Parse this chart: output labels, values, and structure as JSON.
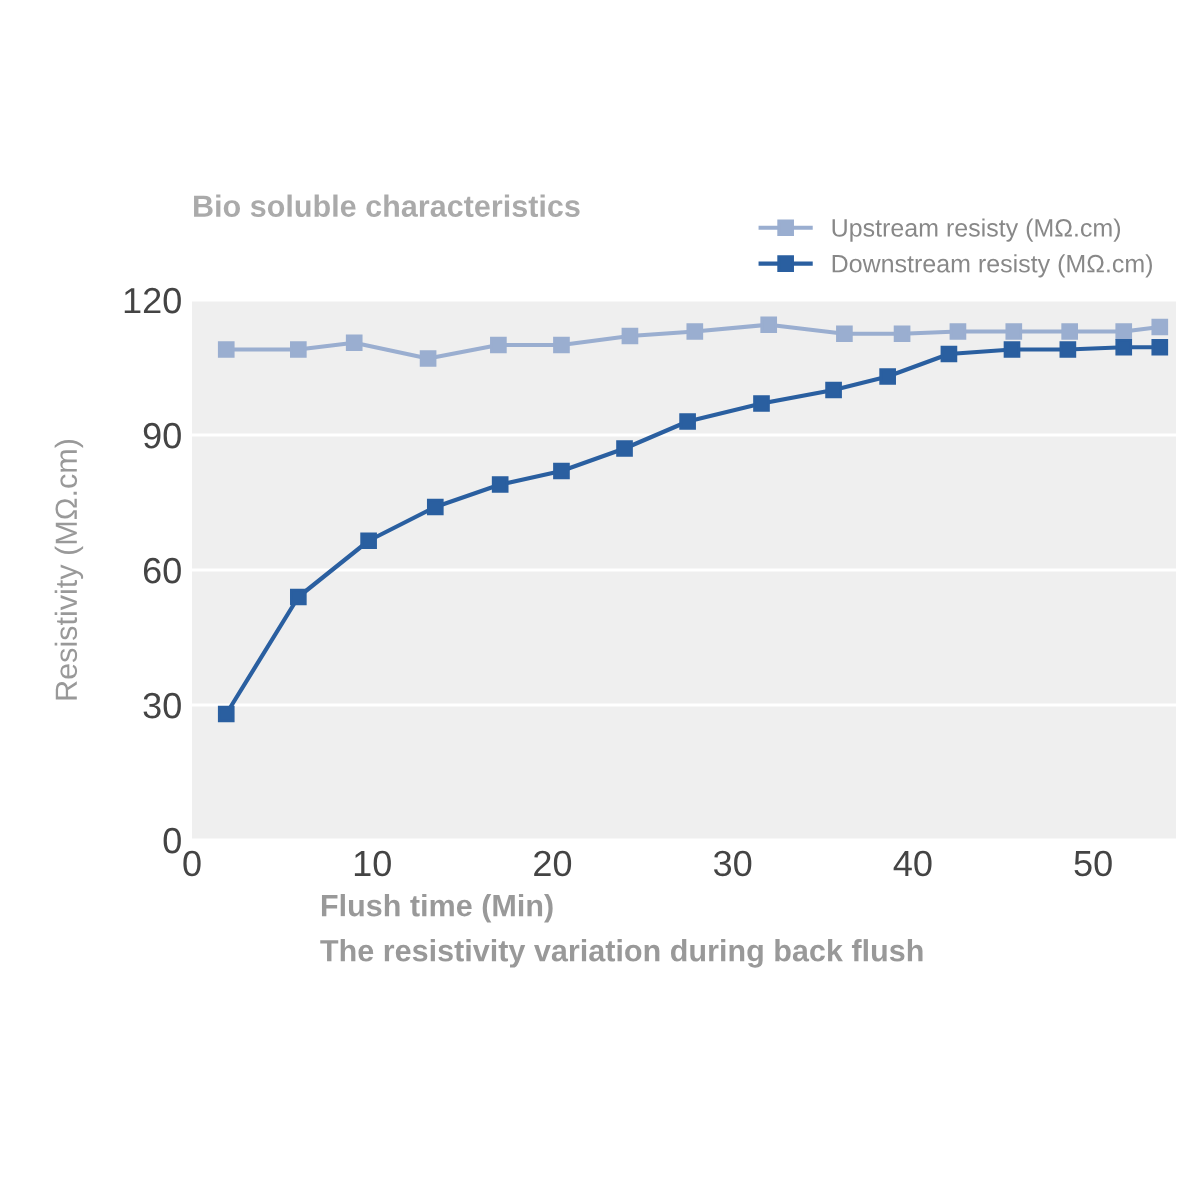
{
  "chart_data": {
    "type": "line",
    "title": "Bio soluble characteristics",
    "xlabel": "Flush time (Min)",
    "ylabel": "Resistivity (MΩ.cm)",
    "annotations": [
      "The resistivity variation during back flush"
    ],
    "series": [
      {
        "name": "Upstream resisty (MΩ.cm)",
        "color": "#9aaed0",
        "x": [
          1.9,
          5.9,
          9,
          13.1,
          17,
          20.5,
          24.3,
          27.9,
          32,
          36.2,
          39.4,
          42.5,
          45.6,
          48.7,
          51.7,
          53.7
        ],
        "values": [
          109,
          109,
          110.5,
          107,
          110,
          110,
          112,
          113,
          114.5,
          112.5,
          112.5,
          113,
          113,
          113,
          113,
          114
        ]
      },
      {
        "name": "Downstream resisty (MΩ.cm)",
        "color": "#2a5fa0",
        "x": [
          1.9,
          5.9,
          9.8,
          13.5,
          17.1,
          20.5,
          24,
          27.5,
          31.6,
          35.6,
          38.6,
          42,
          45.5,
          48.6,
          51.7,
          53.7
        ],
        "values": [
          28,
          54,
          66.5,
          74,
          79,
          82,
          87,
          93,
          97,
          100,
          103,
          108,
          109,
          109,
          109.5,
          109.5
        ]
      }
    ],
    "xlim": [
      0,
      54.6
    ],
    "xticks": [
      0,
      10,
      20,
      30,
      40,
      50
    ],
    "ylim": [
      0,
      120
    ],
    "yticks": [
      0,
      30,
      60,
      90,
      120
    ],
    "grid": "y",
    "legend": "top right",
    "marker": "square",
    "line_style": "solid"
  }
}
